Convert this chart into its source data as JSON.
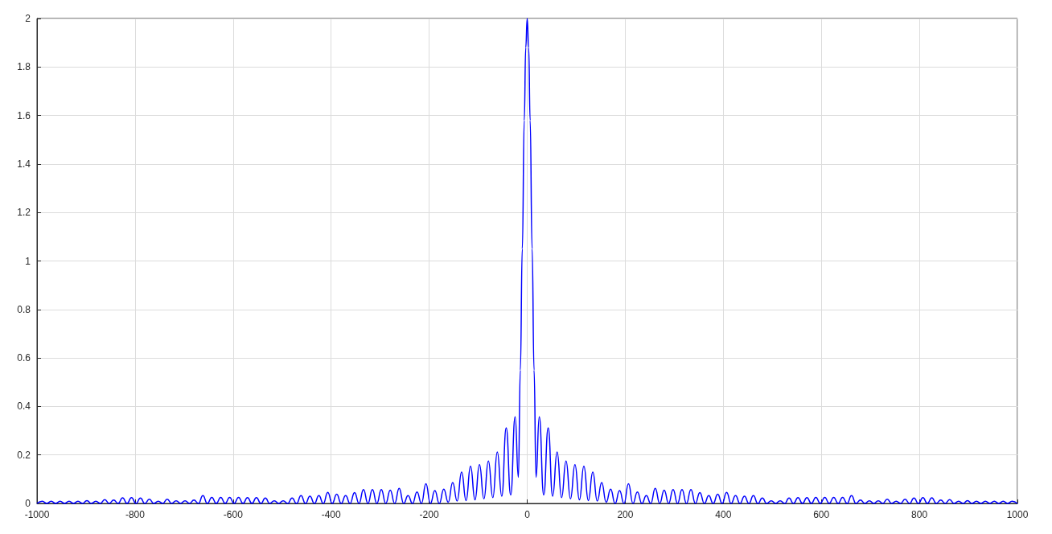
{
  "chart_data": {
    "type": "line",
    "x": [
      -1000,
      -989.2,
      -980.1,
      -971,
      -961.9,
      -952.8,
      -943.7,
      -934.6,
      -925.5,
      -916.4,
      -907.3,
      -898.2,
      -889.1,
      -880,
      -870.9,
      -861.8,
      -852.7,
      -843.6,
      -834.5,
      -825.4,
      -816.3,
      -807.2,
      -798.1,
      -789,
      -779.9,
      -770.8,
      -761.7,
      -752.6,
      -743.5,
      -734.4,
      -725.3,
      -716.2,
      -707.1,
      -698,
      -688.9,
      -679.8,
      -670.7,
      -661.6,
      -652.5,
      -643.4,
      -634.3,
      -625.2,
      -616.1,
      -607,
      -597.9,
      -588.8,
      -579.7,
      -570.6,
      -561.5,
      -552.4,
      -543.3,
      -534.2,
      -525.1,
      -516,
      -506.9,
      -497.8,
      -488.7,
      -479.6,
      -470.5,
      -461.4,
      -452.3,
      -443.2,
      -434.1,
      -425,
      -415.9,
      -406.8,
      -397.7,
      -388.6,
      -379.5,
      -370.4,
      -361.3,
      -352.2,
      -343.1,
      -334,
      -324.9,
      -315.8,
      -306.7,
      -297.6,
      -288.5,
      -279.4,
      -270.3,
      -261.2,
      -252.1,
      -243,
      -233.9,
      -224.8,
      -215.7,
      -206.6,
      -197.5,
      -188.4,
      -179.3,
      -170.2,
      -161.1,
      -152,
      -142.9,
      -133.8,
      -124.7,
      -115.6,
      -106.5,
      -97.4,
      -88.3,
      -79.2,
      -70.1,
      -61,
      -51.9,
      -42.8,
      -33.7,
      -24.6,
      -18,
      -14,
      -10,
      -6,
      -3,
      0,
      3,
      6,
      10,
      14,
      18,
      24.6,
      33.7,
      42.8,
      51.9,
      61,
      70.1,
      79.2,
      88.3,
      97.4,
      106.5,
      115.6,
      124.7,
      133.8,
      142.9,
      152,
      161.1,
      170.2,
      179.3,
      188.4,
      197.5,
      206.6,
      215.7,
      224.8,
      233.9,
      243,
      252.1,
      261.2,
      270.3,
      279.4,
      288.5,
      297.6,
      306.7,
      315.8,
      324.9,
      334,
      343.1,
      352.2,
      361.3,
      370.4,
      379.5,
      388.6,
      397.7,
      406.8,
      415.9,
      425,
      434.1,
      443.2,
      452.3,
      461.4,
      470.5,
      479.6,
      488.7,
      497.8,
      506.9,
      516,
      525.1,
      534.2,
      543.3,
      552.4,
      561.5,
      570.6,
      579.7,
      588.8,
      597.9,
      607,
      616.1,
      625.2,
      634.3,
      643.4,
      652.5,
      661.6,
      670.7,
      679.8,
      688.9,
      698,
      707.1,
      716.2,
      725.3,
      734.4,
      743.5,
      752.6,
      761.7,
      770.8,
      779.9,
      789,
      798.1,
      807.2,
      816.3,
      825.4,
      834.5,
      843.6,
      852.7,
      861.8,
      870.9,
      880,
      889.1,
      898.2,
      907.3,
      916.4,
      925.5,
      934.6,
      943.7,
      952.8,
      961.9,
      971,
      980.1,
      989.2,
      1000
    ],
    "series": [
      {
        "color": "#0000ff",
        "values": [
          0,
          0.009,
          0,
          0.009,
          0,
          0.009,
          0,
          0.009,
          0,
          0.009,
          0,
          0.012,
          0,
          0.009,
          0,
          0.016,
          0,
          0.014,
          0,
          0.023,
          0,
          0.024,
          0,
          0.022,
          0,
          0.017,
          0,
          0.009,
          0,
          0.017,
          0,
          0.011,
          0,
          0.011,
          0,
          0.014,
          0,
          0.032,
          0,
          0.025,
          0,
          0.025,
          0,
          0.025,
          0,
          0.025,
          0,
          0.024,
          0,
          0.024,
          0,
          0.022,
          0,
          0.011,
          0,
          0.011,
          0,
          0.022,
          0,
          0.032,
          0,
          0.03,
          0,
          0.032,
          0,
          0.046,
          0,
          0.038,
          0,
          0.032,
          0,
          0.045,
          0,
          0.057,
          0,
          0.057,
          0,
          0.057,
          0,
          0.055,
          0,
          0.062,
          0,
          0.032,
          0,
          0.047,
          0,
          0.081,
          0,
          0.053,
          0,
          0.059,
          0.005,
          0.086,
          0.01,
          0.129,
          0.012,
          0.153,
          0.015,
          0.16,
          0.019,
          0.175,
          0.024,
          0.212,
          0.03,
          0.312,
          0.035,
          0.357,
          0.108,
          0.55,
          1.05,
          1.58,
          1.88,
          2,
          1.88,
          1.58,
          1.05,
          0.55,
          0.108,
          0.357,
          0.035,
          0.312,
          0.03,
          0.212,
          0.024,
          0.175,
          0.019,
          0.16,
          0.015,
          0.153,
          0.012,
          0.129,
          0.01,
          0.086,
          0.005,
          0.059,
          0,
          0.053,
          0,
          0.081,
          0,
          0.047,
          0,
          0.032,
          0,
          0.062,
          0,
          0.055,
          0,
          0.057,
          0,
          0.057,
          0,
          0.057,
          0,
          0.045,
          0,
          0.032,
          0,
          0.038,
          0,
          0.046,
          0,
          0.032,
          0,
          0.03,
          0,
          0.032,
          0,
          0.022,
          0,
          0.011,
          0,
          0.011,
          0,
          0.022,
          0,
          0.024,
          0,
          0.024,
          0,
          0.025,
          0,
          0.025,
          0,
          0.025,
          0,
          0.025,
          0,
          0.032,
          0,
          0.014,
          0,
          0.011,
          0,
          0.011,
          0,
          0.017,
          0,
          0.009,
          0,
          0.017,
          0,
          0.022,
          0,
          0.024,
          0,
          0.023,
          0,
          0.014,
          0,
          0.016,
          0,
          0.009,
          0,
          0.012,
          0,
          0.009,
          0,
          0.009,
          0,
          0.009,
          0,
          0.009,
          0,
          0.009,
          0
        ]
      }
    ],
    "xlim": [
      -1000,
      1000
    ],
    "xticks": [
      -1000,
      -800,
      -600,
      -400,
      -200,
      0,
      200,
      400,
      600,
      800,
      1000
    ],
    "ylim": [
      0,
      2
    ],
    "yticks": [
      0,
      0.2,
      0.4,
      0.6,
      0.8,
      1,
      1.2,
      1.4,
      1.6,
      1.8,
      2
    ],
    "grid": true,
    "marker": "none",
    "line_style": "solid"
  }
}
